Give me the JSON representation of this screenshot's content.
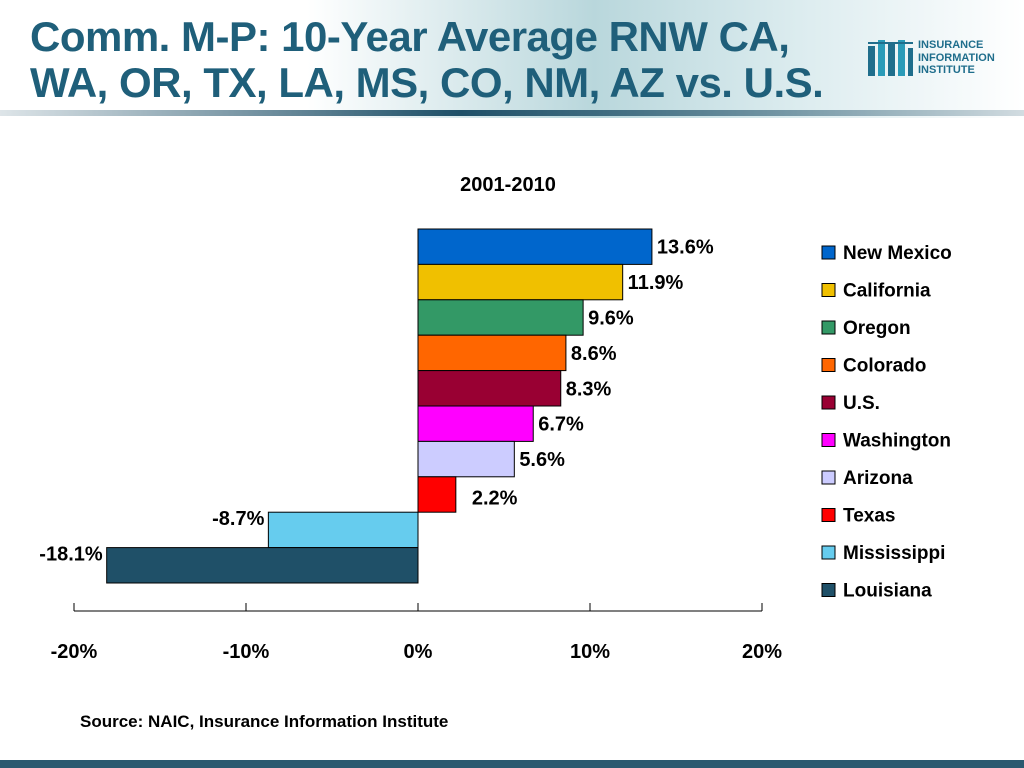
{
  "slide": {
    "title_line1": "Comm. M-P: 10-Year Average RNW CA,",
    "title_line2": "WA, OR, TX, LA, MS, CO, NM, AZ vs. U.S.",
    "source": "Source: NAIC, Insurance Information Institute"
  },
  "logo": {
    "line1": "INSURANCE",
    "line2": "INFORMATION",
    "line3": "INSTITUTE"
  },
  "chart_data": {
    "type": "bar",
    "orientation": "horizontal",
    "title": "2001-2010",
    "categories": [
      "New Mexico",
      "California",
      "Oregon",
      "Colorado",
      "U.S.",
      "Washington",
      "Arizona",
      "Texas",
      "Mississippi",
      "Louisiana"
    ],
    "values": [
      13.6,
      11.9,
      9.6,
      8.6,
      8.3,
      6.7,
      5.6,
      2.2,
      -8.7,
      -18.1
    ],
    "data_labels": [
      "13.6%",
      "11.9%",
      "9.6%",
      "8.6%",
      "8.3%",
      "6.7%",
      "5.6%",
      "2.2%",
      "-8.7%",
      "-18.1%"
    ],
    "colors": [
      "#0066cc",
      "#f0c000",
      "#339966",
      "#ff6600",
      "#990033",
      "#ff00ff",
      "#ccccff",
      "#ff0000",
      "#66ccee",
      "#1f5068"
    ],
    "xlim": [
      -20,
      20
    ],
    "xticks": [
      -20,
      -10,
      0,
      10,
      20
    ],
    "xtick_labels": [
      "-20%",
      "-10%",
      "0%",
      "10%",
      "20%"
    ],
    "legend": [
      "New Mexico",
      "California",
      "Oregon",
      "Colorado",
      "U.S.",
      "Washington",
      "Arizona",
      "Texas",
      "Mississippi",
      "Louisiana"
    ],
    "legend_position": "right",
    "grid": false
  }
}
